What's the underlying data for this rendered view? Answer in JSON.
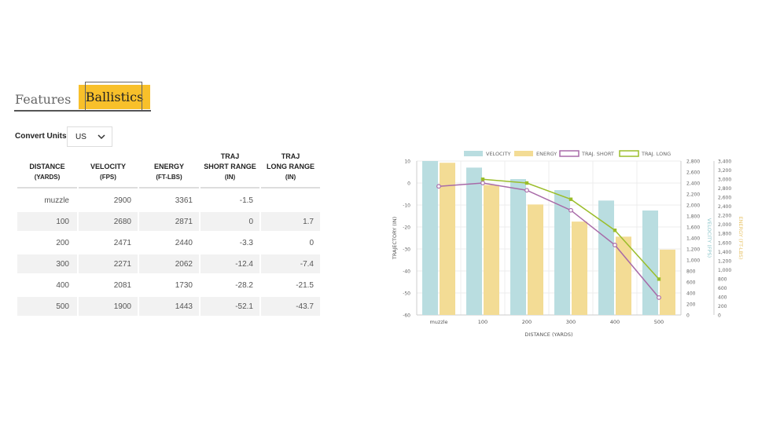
{
  "tabs": [
    {
      "label": "Features",
      "active": false
    },
    {
      "label": "Ballistics",
      "active": true
    }
  ],
  "convert_units": {
    "label": "Convert Units",
    "selected": "US"
  },
  "table": {
    "headers": [
      {
        "title": "DISTANCE",
        "unit": "(YARDS)"
      },
      {
        "title": "VELOCITY",
        "unit": "(FPS)"
      },
      {
        "title": "ENERGY",
        "unit": "(FT-LBS)"
      },
      {
        "title": "TRAJ\nSHORT RANGE",
        "unit": "(IN)"
      },
      {
        "title": "TRAJ\nLONG RANGE",
        "unit": "(IN)"
      }
    ],
    "rows": [
      [
        "muzzle",
        "2900",
        "3361",
        "-1.5",
        ""
      ],
      [
        "100",
        "2680",
        "2871",
        "0",
        "1.7"
      ],
      [
        "200",
        "2471",
        "2440",
        "-3.3",
        "0"
      ],
      [
        "300",
        "2271",
        "2062",
        "-12.4",
        "-7.4"
      ],
      [
        "400",
        "2081",
        "1730",
        "-28.2",
        "-21.5"
      ],
      [
        "500",
        "1900",
        "1443",
        "-52.1",
        "-43.7"
      ]
    ]
  },
  "chart_data": {
    "type": "bar",
    "categories": [
      "muzzle",
      "100",
      "200",
      "300",
      "400",
      "500"
    ],
    "xlabel": "DISTANCE (YARDS)",
    "legend": {
      "position": "top",
      "items": [
        "VELOCITY",
        "ENERGY",
        "TRAJ. SHORT",
        "TRAJ. LONG"
      ]
    },
    "series": [
      {
        "name": "VELOCITY",
        "kind": "bar",
        "axis": "velocity",
        "values": [
          2900,
          2680,
          2471,
          2271,
          2081,
          1900
        ],
        "color": "#b9dde0"
      },
      {
        "name": "ENERGY",
        "kind": "bar",
        "axis": "energy",
        "values": [
          3361,
          2871,
          2440,
          2062,
          1730,
          1443
        ],
        "color": "#f3dc95"
      },
      {
        "name": "TRAJ. SHORT",
        "kind": "line",
        "axis": "trajectory",
        "values": [
          -1.5,
          0,
          -3.3,
          -12.4,
          -28.2,
          -52.1
        ],
        "color": "#a86aa8"
      },
      {
        "name": "TRAJ. LONG",
        "kind": "line",
        "axis": "trajectory",
        "values": [
          null,
          1.7,
          0,
          -7.4,
          -21.5,
          -43.7
        ],
        "color": "#9bbd2a"
      }
    ],
    "axes": {
      "trajectory": {
        "label": "TRAJECTORY (IN)",
        "min": -60,
        "max": 10,
        "ticks": [
          "10",
          "0",
          "-10",
          "-20",
          "-30",
          "-40",
          "-50",
          "-60"
        ]
      },
      "velocity": {
        "label": "VELOCITY (FPS)",
        "min": 0,
        "max": 2800,
        "ticks": [
          "2,800",
          "2,600",
          "2,400",
          "2,200",
          "2,000",
          "1,800",
          "1,600",
          "1,400",
          "1,200",
          "1,000",
          "800",
          "600",
          "400",
          "200",
          "0"
        ]
      },
      "energy": {
        "label": "ENERGY (FT-LBS)",
        "min": 0,
        "max": 3400,
        "ticks": [
          "3,400",
          "3,200",
          "3,000",
          "2,800",
          "2,600",
          "2,400",
          "2,200",
          "2,000",
          "1,800",
          "1,600",
          "1,400",
          "1,200",
          "1,000",
          "800",
          "600",
          "400",
          "200",
          "0"
        ]
      }
    },
    "grid": true
  }
}
